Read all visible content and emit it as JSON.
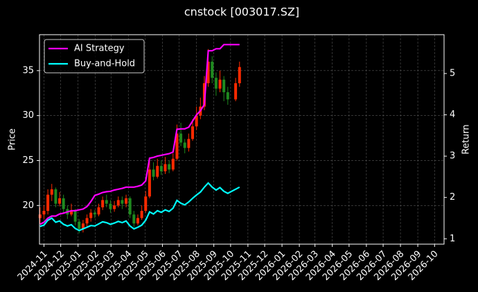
{
  "chart_data": {
    "type": "candlestick",
    "title": "cnstock [003017.SZ]",
    "y_label": "Price",
    "y2_label": "Return",
    "x": [
      "2024-10-25",
      "2024-11-01",
      "2024-11-08",
      "2024-11-15",
      "2024-11-22",
      "2024-11-29",
      "2024-12-06",
      "2024-12-13",
      "2024-12-20",
      "2024-12-27",
      "2025-01-03",
      "2025-01-10",
      "2025-01-17",
      "2025-01-24",
      "2025-01-31",
      "2025-02-07",
      "2025-02-14",
      "2025-02-21",
      "2025-02-28",
      "2025-03-07",
      "2025-03-14",
      "2025-03-21",
      "2025-03-28",
      "2025-04-04",
      "2025-04-11",
      "2025-04-18",
      "2025-04-25",
      "2025-05-02",
      "2025-05-09",
      "2025-05-16",
      "2025-05-23",
      "2025-05-30",
      "2025-06-06",
      "2025-06-13",
      "2025-06-20",
      "2025-06-27",
      "2025-07-04",
      "2025-07-11",
      "2025-07-18",
      "2025-07-25",
      "2025-08-01",
      "2025-08-08",
      "2025-08-15",
      "2025-08-22",
      "2025-08-29",
      "2025-09-05",
      "2025-09-12",
      "2025-09-19",
      "2025-09-26",
      "2025-10-10",
      "2025-10-17"
    ],
    "open": [
      18.6,
      19.0,
      19.4,
      21.2,
      21.8,
      20.2,
      20.8,
      19.6,
      19.0,
      19.4,
      18.2,
      17.4,
      18.0,
      18.6,
      19.2,
      19.0,
      19.8,
      20.6,
      20.2,
      19.6,
      20.0,
      20.6,
      20.2,
      20.8,
      19.0,
      18.0,
      18.6,
      19.4,
      21.0,
      24.0,
      23.2,
      24.4,
      23.8,
      24.6,
      24.0,
      25.2,
      28.0,
      27.0,
      26.4,
      27.4,
      28.8,
      30.0,
      31.0,
      33.6,
      36.0,
      34.2,
      33.0,
      34.0,
      32.6,
      31.8,
      33.6
    ],
    "high": [
      19.8,
      20.0,
      21.8,
      22.4,
      22.0,
      21.5,
      21.2,
      20.0,
      20.2,
      19.6,
      18.5,
      18.4,
      19.0,
      19.6,
      19.5,
      20.2,
      21.0,
      21.2,
      20.6,
      20.5,
      21.0,
      21.0,
      21.2,
      21.0,
      19.4,
      19.0,
      20.0,
      21.6,
      25.0,
      24.8,
      25.2,
      25.0,
      25.4,
      25.0,
      25.8,
      29.0,
      29.2,
      27.4,
      28.0,
      29.6,
      31.0,
      32.0,
      34.4,
      37.4,
      36.6,
      34.8,
      35.0,
      34.4,
      33.2,
      34.2,
      36.0
    ],
    "low": [
      18.0,
      18.5,
      19.0,
      20.5,
      19.8,
      19.9,
      19.2,
      18.5,
      18.8,
      17.8,
      16.9,
      17.0,
      17.6,
      18.2,
      18.6,
      18.8,
      19.5,
      19.8,
      19.2,
      19.3,
      19.8,
      19.6,
      19.8,
      18.6,
      17.6,
      17.8,
      18.4,
      19.2,
      20.8,
      22.8,
      23.0,
      23.4,
      23.5,
      23.6,
      23.8,
      25.0,
      26.6,
      25.8,
      26.0,
      27.2,
      28.4,
      29.6,
      30.6,
      33.2,
      33.6,
      32.2,
      32.6,
      31.6,
      31.2,
      31.6,
      33.2
    ],
    "close": [
      19.0,
      19.4,
      21.2,
      21.8,
      20.2,
      20.8,
      19.6,
      19.0,
      19.4,
      18.2,
      17.4,
      18.0,
      18.6,
      19.2,
      19.0,
      19.8,
      20.6,
      20.2,
      19.6,
      20.0,
      20.6,
      20.2,
      20.8,
      19.0,
      18.0,
      18.6,
      19.4,
      21.0,
      24.0,
      23.2,
      24.4,
      23.8,
      24.6,
      24.0,
      25.2,
      28.0,
      27.0,
      26.4,
      27.4,
      28.8,
      30.0,
      31.0,
      33.6,
      36.0,
      34.2,
      33.0,
      34.0,
      32.6,
      31.8,
      33.6,
      35.4
    ],
    "up_color": "#ff2a00",
    "down_color": "#1f8a1f",
    "series": [
      {
        "name": "AI Strategy",
        "color": "#ff00ff",
        "axis": "y2",
        "values": [
          1.35,
          1.4,
          1.5,
          1.55,
          1.55,
          1.6,
          1.62,
          1.65,
          1.68,
          1.68,
          1.7,
          1.72,
          1.78,
          1.9,
          2.05,
          2.08,
          2.12,
          2.14,
          2.15,
          2.18,
          2.2,
          2.22,
          2.25,
          2.25,
          2.25,
          2.27,
          2.3,
          2.4,
          2.95,
          2.97,
          3.0,
          3.02,
          3.04,
          3.06,
          3.1,
          3.65,
          3.66,
          3.66,
          3.7,
          3.85,
          4.0,
          4.1,
          4.25,
          5.55,
          5.55,
          5.6,
          5.6,
          5.7,
          5.7,
          5.7,
          5.7
        ]
      },
      {
        "name": "Buy-and-Hold",
        "color": "#00ffff",
        "axis": "y2",
        "values": [
          1.3,
          1.33,
          1.45,
          1.5,
          1.4,
          1.43,
          1.35,
          1.31,
          1.34,
          1.25,
          1.2,
          1.24,
          1.28,
          1.32,
          1.31,
          1.36,
          1.41,
          1.39,
          1.35,
          1.38,
          1.42,
          1.39,
          1.43,
          1.31,
          1.24,
          1.28,
          1.33,
          1.45,
          1.65,
          1.6,
          1.68,
          1.64,
          1.7,
          1.66,
          1.74,
          1.93,
          1.86,
          1.82,
          1.89,
          1.98,
          2.06,
          2.13,
          2.25,
          2.35,
          2.25,
          2.18,
          2.24,
          2.15,
          2.1,
          2.2,
          2.25
        ]
      }
    ],
    "xlim": [
      "2024-10-24",
      "2026-10-18"
    ],
    "xticks": [
      {
        "value": "2024-11-01",
        "label": "2024-11"
      },
      {
        "value": "2024-12-01",
        "label": "2024-12"
      },
      {
        "value": "2025-01-01",
        "label": "2025-01"
      },
      {
        "value": "2025-02-01",
        "label": "2025-02"
      },
      {
        "value": "2025-03-01",
        "label": "2025-03"
      },
      {
        "value": "2025-04-01",
        "label": "2025-04"
      },
      {
        "value": "2025-05-01",
        "label": "2025-05"
      },
      {
        "value": "2025-06-01",
        "label": "2025-06"
      },
      {
        "value": "2025-07-01",
        "label": "2025-07"
      },
      {
        "value": "2025-08-01",
        "label": "2025-08"
      },
      {
        "value": "2025-09-01",
        "label": "2025-09"
      },
      {
        "value": "2025-10-01",
        "label": "2025-10"
      },
      {
        "value": "2025-11-01",
        "label": "2025-11"
      },
      {
        "value": "2025-12-01",
        "label": "2025-12"
      },
      {
        "value": "2026-01-01",
        "label": "2026-01"
      },
      {
        "value": "2026-02-01",
        "label": "2026-02"
      },
      {
        "value": "2026-03-01",
        "label": "2026-03"
      },
      {
        "value": "2026-04-01",
        "label": "2026-04"
      },
      {
        "value": "2026-05-01",
        "label": "2026-05"
      },
      {
        "value": "2026-06-01",
        "label": "2026-06"
      },
      {
        "value": "2026-07-01",
        "label": "2026-07"
      },
      {
        "value": "2026-08-01",
        "label": "2026-08"
      },
      {
        "value": "2026-09-01",
        "label": "2026-09"
      },
      {
        "value": "2026-10-01",
        "label": "2026-10"
      }
    ],
    "ylim": [
      15.7,
      39
    ],
    "yticks": [
      20,
      25,
      30,
      35
    ],
    "y2lim": [
      0.87,
      5.94
    ],
    "y2ticks": [
      1,
      2,
      3,
      4,
      5
    ],
    "grid": true,
    "legend": "upper-left"
  }
}
